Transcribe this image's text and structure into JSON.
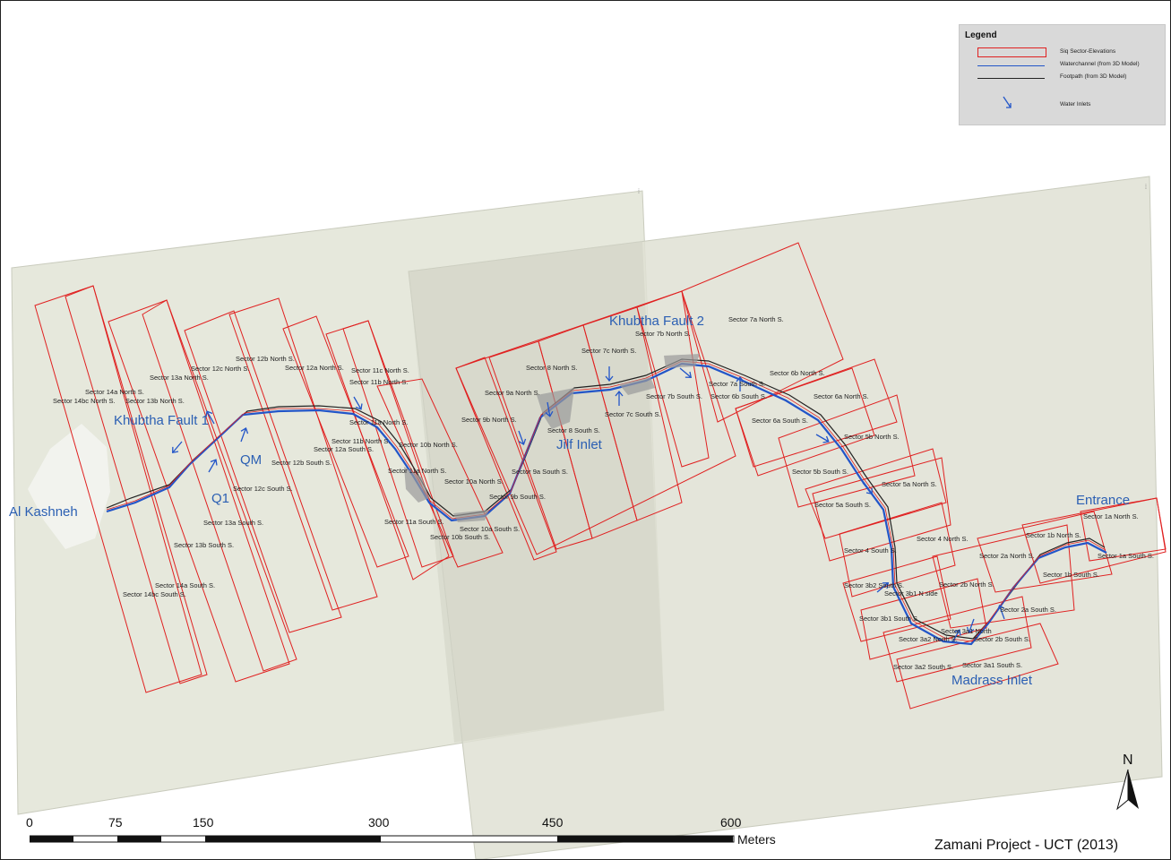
{
  "legend": {
    "title": "Legend",
    "items": [
      {
        "label": "Siq Sector-Elevations",
        "symbol": "red-rectangle",
        "color": "#e02020"
      },
      {
        "label": "Waterchannel (from 3D Model)",
        "symbol": "blue-line",
        "color": "#2255c8"
      },
      {
        "label": "Footpath (from 3D Model)",
        "symbol": "black-line",
        "color": "#222222"
      },
      {
        "label": "Water Inlets",
        "symbol": "arrow-icon",
        "color": "#2255c8"
      }
    ]
  },
  "places": [
    {
      "name": "Al Kashneh"
    },
    {
      "name": "Khubtha Fault 1"
    },
    {
      "name": "QM"
    },
    {
      "name": "Q1"
    },
    {
      "name": "Khubtha Fault 2"
    },
    {
      "name": "Jilf Inlet"
    },
    {
      "name": "Entrance"
    },
    {
      "name": "Madrass Inlet"
    }
  ],
  "sectors": [
    "Sector 14a North S.",
    "Sector 14bc North S.",
    "Sector 13b North S.",
    "Sector 13a North S.",
    "Sector 12c North S.",
    "Sector 12b North S.",
    "Sector 12a North S.",
    "Sector 11c North S.",
    "Sector 11b North S.",
    "Sector 11a North S.",
    "Sector 11b North S.",
    "Sector 12a South S.",
    "Sector 10b North S.",
    "Sector 12b South S.",
    "Sector 12c South S.",
    "Sector 13a South S.",
    "Sector 13b South S.",
    "Sector 14a South S.",
    "Sector 14bc South S.",
    "Sector 11a North S.",
    "Sector 10a North S.",
    "Sector 11a South S.",
    "Sector 10a South S.",
    "Sector 10b South S.",
    "Sector 9a South S.",
    "Sector 9b South S.",
    "Sector 9b North S.",
    "Sector 9a North S.",
    "Sector 8 North S.",
    "Sector 8 South S.",
    "Sector 7c North S.",
    "Sector 7c South S.",
    "Sector 7b North S.",
    "Sector 7b South S.",
    "Sector 7a North S.",
    "Sector 7a South S.",
    "Sector 6b South S.",
    "Sector 6b North S.",
    "Sector 6a North S.",
    "Sector 6a South S.",
    "Sector 5b North S.",
    "Sector 5b South S.",
    "Sector 5a North S.",
    "Sector 5a South S.",
    "Sector 4 North S.",
    "Sector 4 South S.",
    "Sector 3b2 South S.",
    "Sector 3b1 N side",
    "Sector 3b1 South S.",
    "Sector 3a1 North",
    "Sector 3a2 North S.",
    "Sector 2b South S.",
    "Sector 3a2 South S.",
    "Sector 3a1 South S.",
    "Sector 2b North S.",
    "Sector 2a North S.",
    "Sector 2a South S.",
    "Sector 1b North S.",
    "Sector 1b South S.",
    "Sector 1a North S.",
    "Sector 1a South S."
  ],
  "scale": {
    "ticks": [
      "0",
      "75",
      "150",
      "300",
      "450",
      "600"
    ],
    "unit": "Meters"
  },
  "north": "N",
  "credit": "Zamani Project - UCT  (2013)"
}
